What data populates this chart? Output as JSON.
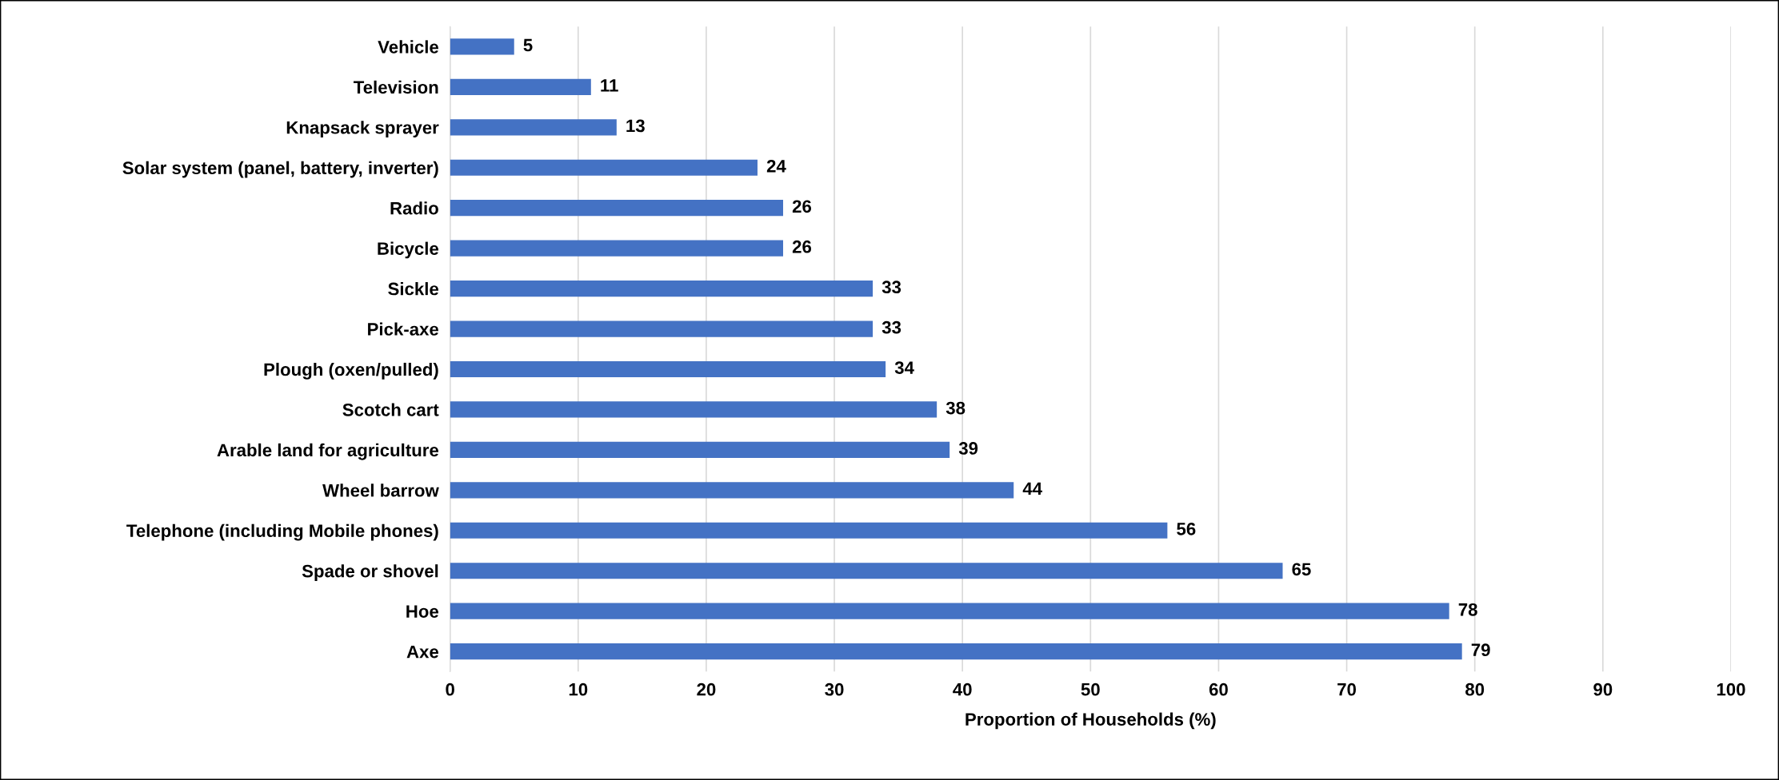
{
  "chart_data": {
    "type": "bar",
    "orientation": "horizontal",
    "categories": [
      "Vehicle",
      "Television",
      "Knapsack sprayer",
      "Solar system (panel, battery, inverter)",
      "Radio",
      "Bicycle",
      "Sickle",
      "Pick-axe",
      "Plough (oxen/pulled)",
      "Scotch cart",
      "Arable land for agriculture",
      "Wheel barrow",
      "Telephone (including Mobile phones)",
      "Spade or shovel",
      "Hoe",
      "Axe"
    ],
    "values": [
      5,
      11,
      13,
      24,
      26,
      26,
      33,
      33,
      34,
      38,
      39,
      44,
      56,
      65,
      78,
      79
    ],
    "color": "#4472c4",
    "xlim": [
      0,
      100
    ],
    "xticks": [
      0,
      10,
      20,
      30,
      40,
      50,
      60,
      70,
      80,
      90,
      100
    ],
    "xlabel": "Proportion of Households (%)",
    "grid": "x",
    "data_labels": true
  }
}
